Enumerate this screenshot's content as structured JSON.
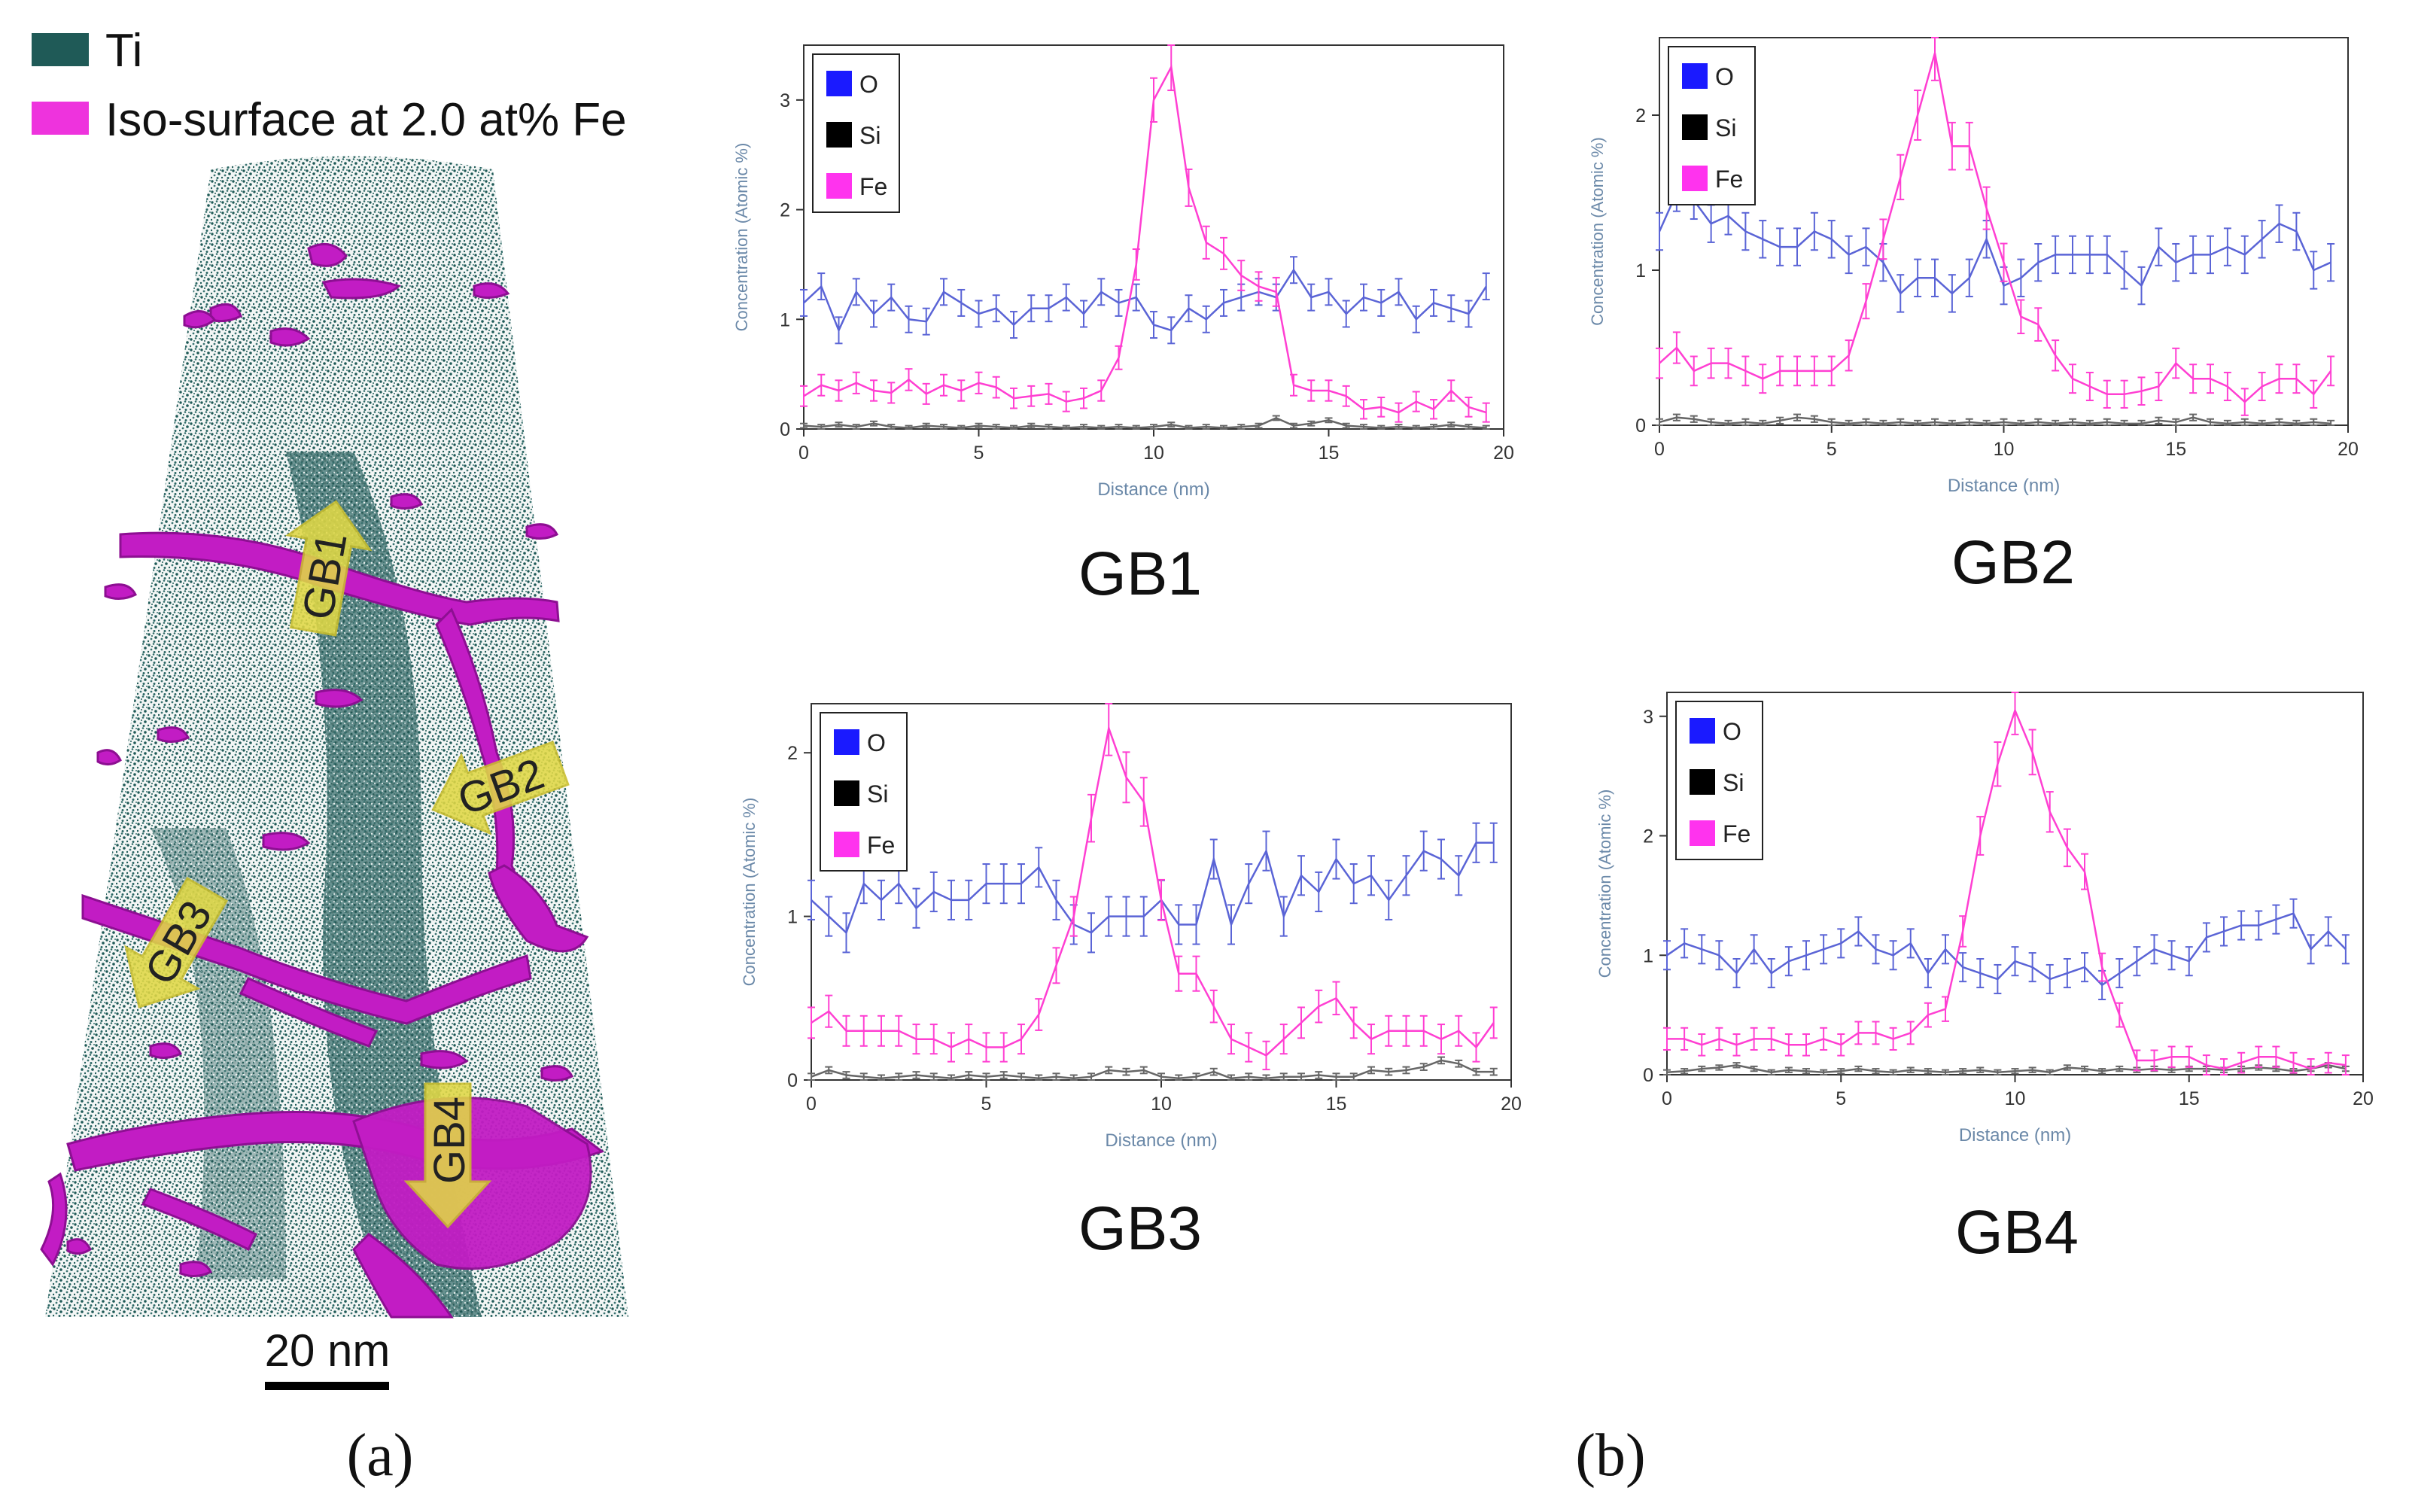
{
  "colors": {
    "ti": "#1f5a57",
    "fe_surface": "#c21cc4",
    "fe_line": "#ff3fd2",
    "o_line": "#5a64d6",
    "si_line": "#666666",
    "o_legend": "#1a1aff",
    "si_legend": "#000000",
    "fe_legend": "#ff33ee",
    "axis_label": "#6a88a8",
    "arrow": "#e0d845"
  },
  "panel_a": {
    "legend": [
      {
        "label": "Ti",
        "color": "#1f5a57"
      },
      {
        "label": "Iso-surface at 2.0 at% Fe",
        "color": "#ee33dd"
      }
    ],
    "arrows": [
      "GB1",
      "GB2",
      "GB3",
      "GB4"
    ],
    "scale_bar_label": "20 nm",
    "caption": "(a)"
  },
  "panel_b": {
    "caption": "(b)"
  },
  "chart_data": [
    {
      "type": "line",
      "name": "GB1",
      "title": "GB1",
      "xlabel": "Distance (nm)",
      "ylabel": "Concentration (Atomic %)",
      "xlim": [
        0,
        20
      ],
      "ylim": [
        0,
        3.5
      ],
      "xticks": [
        0,
        5,
        10,
        15,
        20
      ],
      "yticks": [
        0,
        1,
        2,
        3
      ],
      "legend": [
        "O",
        "Si",
        "Fe"
      ],
      "x": [
        0,
        0.5,
        1,
        1.5,
        2,
        2.5,
        3,
        3.5,
        4,
        4.5,
        5,
        5.5,
        6,
        6.5,
        7,
        7.5,
        8,
        8.5,
        9,
        9.5,
        10,
        10.5,
        11,
        11.5,
        12,
        12.5,
        13,
        13.5,
        14,
        14.5,
        15,
        15.5,
        16,
        16.5,
        17,
        17.5,
        18,
        18.5,
        19,
        19.5
      ],
      "series": [
        {
          "name": "O",
          "values": [
            1.15,
            1.3,
            0.9,
            1.25,
            1.05,
            1.2,
            1.0,
            0.98,
            1.25,
            1.15,
            1.05,
            1.1,
            0.95,
            1.1,
            1.1,
            1.2,
            1.05,
            1.25,
            1.15,
            1.2,
            0.95,
            0.9,
            1.1,
            1.0,
            1.15,
            1.2,
            1.25,
            1.2,
            1.45,
            1.2,
            1.25,
            1.05,
            1.2,
            1.15,
            1.25,
            1.0,
            1.15,
            1.1,
            1.05,
            1.3
          ]
        },
        {
          "name": "Si",
          "values": [
            0.03,
            0.02,
            0.04,
            0.02,
            0.05,
            0.02,
            0.01,
            0.03,
            0.02,
            0.01,
            0.03,
            0.02,
            0.01,
            0.03,
            0.02,
            0.01,
            0.02,
            0.01,
            0.02,
            0.01,
            0.02,
            0.04,
            0.01,
            0.02,
            0.01,
            0.02,
            0.03,
            0.1,
            0.03,
            0.05,
            0.08,
            0.03,
            0.02,
            0.01,
            0.02,
            0.01,
            0.02,
            0.04,
            0.02,
            0.01
          ]
        },
        {
          "name": "Fe",
          "values": [
            0.3,
            0.4,
            0.35,
            0.42,
            0.35,
            0.33,
            0.45,
            0.32,
            0.4,
            0.35,
            0.42,
            0.38,
            0.28,
            0.3,
            0.32,
            0.25,
            0.28,
            0.35,
            0.65,
            1.5,
            3.0,
            3.3,
            2.2,
            1.7,
            1.6,
            1.4,
            1.3,
            1.25,
            0.4,
            0.35,
            0.35,
            0.3,
            0.18,
            0.2,
            0.15,
            0.25,
            0.18,
            0.35,
            0.2,
            0.15
          ]
        }
      ]
    },
    {
      "type": "line",
      "name": "GB2",
      "title": "GB2",
      "xlabel": "Distance (nm)",
      "ylabel": "Concentration (Atomic %)",
      "xlim": [
        0,
        20
      ],
      "ylim": [
        0,
        2.5
      ],
      "xticks": [
        0,
        5,
        10,
        15,
        20
      ],
      "yticks": [
        0,
        1,
        2
      ],
      "legend": [
        "O",
        "Si",
        "Fe"
      ],
      "x": [
        0,
        0.5,
        1,
        1.5,
        2,
        2.5,
        3,
        3.5,
        4,
        4.5,
        5,
        5.5,
        6,
        6.5,
        7,
        7.5,
        8,
        8.5,
        9,
        9.5,
        10,
        10.5,
        11,
        11.5,
        12,
        12.5,
        13,
        13.5,
        14,
        14.5,
        15,
        15.5,
        16,
        16.5,
        17,
        17.5,
        18,
        18.5,
        19,
        19.5
      ],
      "series": [
        {
          "name": "O",
          "values": [
            1.25,
            1.5,
            1.45,
            1.3,
            1.35,
            1.25,
            1.2,
            1.15,
            1.15,
            1.25,
            1.2,
            1.1,
            1.15,
            1.05,
            0.85,
            0.95,
            0.95,
            0.85,
            0.95,
            1.2,
            0.9,
            0.95,
            1.05,
            1.1,
            1.1,
            1.1,
            1.1,
            1.0,
            0.9,
            1.15,
            1.05,
            1.1,
            1.1,
            1.15,
            1.1,
            1.2,
            1.3,
            1.25,
            1.0,
            1.05
          ]
        },
        {
          "name": "Si",
          "values": [
            0.02,
            0.05,
            0.04,
            0.02,
            0.01,
            0.02,
            0.01,
            0.03,
            0.05,
            0.04,
            0.02,
            0.01,
            0.02,
            0.01,
            0.02,
            0.01,
            0.02,
            0.01,
            0.02,
            0.01,
            0.02,
            0.01,
            0.02,
            0.01,
            0.02,
            0.01,
            0.02,
            0.01,
            0.01,
            0.03,
            0.02,
            0.05,
            0.02,
            0.01,
            0.02,
            0.01,
            0.02,
            0.01,
            0.02,
            0.01
          ]
        },
        {
          "name": "Fe",
          "values": [
            0.4,
            0.5,
            0.35,
            0.4,
            0.4,
            0.35,
            0.3,
            0.35,
            0.35,
            0.35,
            0.35,
            0.45,
            0.8,
            1.2,
            1.6,
            2.0,
            2.4,
            1.8,
            1.8,
            1.4,
            1.05,
            0.7,
            0.65,
            0.45,
            0.3,
            0.25,
            0.2,
            0.2,
            0.22,
            0.25,
            0.4,
            0.3,
            0.3,
            0.25,
            0.15,
            0.25,
            0.3,
            0.3,
            0.2,
            0.35
          ]
        }
      ]
    },
    {
      "type": "line",
      "name": "GB3",
      "title": "GB3",
      "xlabel": "Distance (nm)",
      "ylabel": "Concentration (Atomic %)",
      "xlim": [
        0,
        20
      ],
      "ylim": [
        0,
        2.3
      ],
      "xticks": [
        0,
        5,
        10,
        15,
        20
      ],
      "yticks": [
        0,
        1,
        2
      ],
      "legend": [
        "O",
        "Si",
        "Fe"
      ],
      "x": [
        0,
        0.5,
        1,
        1.5,
        2,
        2.5,
        3,
        3.5,
        4,
        4.5,
        5,
        5.5,
        6,
        6.5,
        7,
        7.5,
        8,
        8.5,
        9,
        9.5,
        10,
        10.5,
        11,
        11.5,
        12,
        12.5,
        13,
        13.5,
        14,
        14.5,
        15,
        15.5,
        16,
        16.5,
        17,
        17.5,
        18,
        18.5,
        19,
        19.5
      ],
      "series": [
        {
          "name": "O",
          "values": [
            1.1,
            1.0,
            0.9,
            1.2,
            1.1,
            1.2,
            1.05,
            1.15,
            1.1,
            1.1,
            1.2,
            1.2,
            1.2,
            1.3,
            1.1,
            0.95,
            0.9,
            1.0,
            1.0,
            1.0,
            1.1,
            0.95,
            0.95,
            1.35,
            0.95,
            1.2,
            1.4,
            1.0,
            1.25,
            1.15,
            1.35,
            1.2,
            1.25,
            1.1,
            1.25,
            1.4,
            1.35,
            1.25,
            1.45,
            1.45
          ]
        },
        {
          "name": "Si",
          "values": [
            0.02,
            0.06,
            0.03,
            0.02,
            0.01,
            0.02,
            0.03,
            0.02,
            0.01,
            0.03,
            0.02,
            0.03,
            0.02,
            0.01,
            0.02,
            0.01,
            0.02,
            0.06,
            0.05,
            0.06,
            0.02,
            0.01,
            0.02,
            0.05,
            0.01,
            0.02,
            0.01,
            0.02,
            0.02,
            0.03,
            0.02,
            0.02,
            0.06,
            0.05,
            0.06,
            0.08,
            0.12,
            0.1,
            0.05,
            0.05
          ]
        },
        {
          "name": "Fe",
          "values": [
            0.35,
            0.42,
            0.3,
            0.3,
            0.3,
            0.3,
            0.25,
            0.25,
            0.2,
            0.25,
            0.2,
            0.2,
            0.25,
            0.4,
            0.7,
            1.0,
            1.6,
            2.15,
            1.85,
            1.7,
            1.1,
            0.65,
            0.65,
            0.45,
            0.25,
            0.2,
            0.15,
            0.25,
            0.35,
            0.45,
            0.5,
            0.35,
            0.25,
            0.3,
            0.3,
            0.3,
            0.25,
            0.3,
            0.2,
            0.35
          ]
        }
      ]
    },
    {
      "type": "line",
      "name": "GB4",
      "title": "GB4",
      "xlabel": "Distance (nm)",
      "ylabel": "Concentration (Atomic %)",
      "xlim": [
        0,
        20
      ],
      "ylim": [
        0,
        3.2
      ],
      "xticks": [
        0,
        5,
        10,
        15,
        20
      ],
      "yticks": [
        0,
        1,
        2,
        3
      ],
      "legend": [
        "O",
        "Si",
        "Fe"
      ],
      "x": [
        0,
        0.5,
        1,
        1.5,
        2,
        2.5,
        3,
        3.5,
        4,
        4.5,
        5,
        5.5,
        6,
        6.5,
        7,
        7.5,
        8,
        8.5,
        9,
        9.5,
        10,
        10.5,
        11,
        11.5,
        12,
        12.5,
        13,
        13.5,
        14,
        14.5,
        15,
        15.5,
        16,
        16.5,
        17,
        17.5,
        18,
        18.5,
        19,
        19.5
      ],
      "series": [
        {
          "name": "O",
          "values": [
            1.0,
            1.1,
            1.05,
            1.0,
            0.85,
            1.05,
            0.85,
            0.95,
            1.0,
            1.05,
            1.1,
            1.2,
            1.05,
            1.0,
            1.1,
            0.85,
            1.05,
            0.9,
            0.85,
            0.8,
            0.95,
            0.9,
            0.8,
            0.85,
            0.9,
            0.75,
            0.85,
            0.95,
            1.05,
            1.0,
            0.95,
            1.15,
            1.2,
            1.25,
            1.25,
            1.3,
            1.35,
            1.05,
            1.2,
            1.05
          ]
        },
        {
          "name": "Si",
          "values": [
            0.02,
            0.03,
            0.05,
            0.06,
            0.08,
            0.05,
            0.02,
            0.04,
            0.03,
            0.02,
            0.03,
            0.05,
            0.03,
            0.02,
            0.04,
            0.03,
            0.02,
            0.03,
            0.04,
            0.02,
            0.03,
            0.04,
            0.02,
            0.06,
            0.05,
            0.03,
            0.05,
            0.04,
            0.05,
            0.04,
            0.05,
            0.05,
            0.04,
            0.05,
            0.06,
            0.05,
            0.03,
            0.05,
            0.08,
            0.05
          ]
        },
        {
          "name": "Fe",
          "values": [
            0.3,
            0.3,
            0.25,
            0.3,
            0.25,
            0.3,
            0.3,
            0.25,
            0.25,
            0.3,
            0.25,
            0.35,
            0.35,
            0.3,
            0.35,
            0.5,
            0.55,
            1.2,
            2.0,
            2.6,
            3.05,
            2.7,
            2.2,
            1.9,
            1.7,
            0.9,
            0.5,
            0.12,
            0.12,
            0.15,
            0.15,
            0.08,
            0.05,
            0.1,
            0.15,
            0.15,
            0.1,
            0.05,
            0.1,
            0.08
          ]
        }
      ]
    }
  ]
}
